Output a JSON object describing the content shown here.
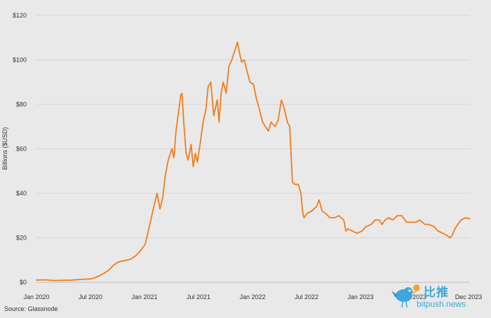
{
  "chart_data": {
    "type": "line",
    "title": "",
    "xlabel": "",
    "ylabel": "Billions ($USD)",
    "x_ticks": [
      "Jan 2020",
      "Jul 2020",
      "Jan 2021",
      "Jul 2021",
      "Jan 2022",
      "Jul 2022",
      "Jan 2023",
      "Jul 2023",
      "Dec 2023"
    ],
    "y_ticks": [
      "$0",
      "$20",
      "$40",
      "$60",
      "$80",
      "$100",
      "$120"
    ],
    "ylim": [
      0,
      120
    ],
    "xlim": [
      "2020-01-01",
      "2023-12-31"
    ],
    "grid": "horizontal",
    "color": "#f07d1b",
    "series": [
      {
        "x": [
          "2020-01-01",
          "2020-02-01",
          "2020-03-01",
          "2020-04-01",
          "2020-05-01",
          "2020-06-01",
          "2020-07-01",
          "2020-07-15",
          "2020-08-01",
          "2020-08-15",
          "2020-09-01",
          "2020-09-15",
          "2020-10-01",
          "2020-10-15",
          "2020-11-01",
          "2020-11-15",
          "2020-12-01",
          "2020-12-15",
          "2021-01-01",
          "2021-01-10",
          "2021-01-20",
          "2021-02-01",
          "2021-02-10",
          "2021-02-20",
          "2021-03-01",
          "2021-03-10",
          "2021-03-20",
          "2021-04-01",
          "2021-04-08",
          "2021-04-15",
          "2021-04-22",
          "2021-05-01",
          "2021-05-05",
          "2021-05-12",
          "2021-05-19",
          "2021-05-26",
          "2021-06-05",
          "2021-06-12",
          "2021-06-19",
          "2021-06-26",
          "2021-07-05",
          "2021-07-15",
          "2021-07-25",
          "2021-08-01",
          "2021-08-10",
          "2021-08-20",
          "2021-09-01",
          "2021-09-07",
          "2021-09-14",
          "2021-09-21",
          "2021-10-01",
          "2021-10-10",
          "2021-10-20",
          "2021-11-01",
          "2021-11-08",
          "2021-11-15",
          "2021-11-22",
          "2021-12-01",
          "2021-12-10",
          "2021-12-20",
          "2022-01-01",
          "2022-01-10",
          "2022-01-20",
          "2022-02-01",
          "2022-02-10",
          "2022-02-20",
          "2022-03-01",
          "2022-03-15",
          "2022-03-25",
          "2022-04-05",
          "2022-04-15",
          "2022-04-25",
          "2022-05-03",
          "2022-05-08",
          "2022-05-12",
          "2022-05-20",
          "2022-06-01",
          "2022-06-10",
          "2022-06-15",
          "2022-06-20",
          "2022-07-01",
          "2022-07-15",
          "2022-08-01",
          "2022-08-10",
          "2022-08-20",
          "2022-09-01",
          "2022-09-15",
          "2022-10-01",
          "2022-10-15",
          "2022-11-01",
          "2022-11-08",
          "2022-11-15",
          "2022-12-01",
          "2022-12-15",
          "2023-01-01",
          "2023-01-15",
          "2023-02-01",
          "2023-02-15",
          "2023-03-01",
          "2023-03-10",
          "2023-03-20",
          "2023-04-01",
          "2023-04-15",
          "2023-05-01",
          "2023-05-15",
          "2023-06-01",
          "2023-06-15",
          "2023-07-01",
          "2023-07-15",
          "2023-08-01",
          "2023-08-15",
          "2023-09-01",
          "2023-09-15",
          "2023-10-01",
          "2023-10-15",
          "2023-10-25",
          "2023-11-01",
          "2023-11-10",
          "2023-11-20",
          "2023-12-01",
          "2023-12-15",
          "2023-12-31"
        ],
        "y": [
          1.0,
          1.1,
          0.8,
          0.9,
          1.0,
          1.3,
          1.5,
          2.0,
          3.0,
          4.0,
          5.5,
          7.5,
          9.0,
          9.5,
          10.0,
          10.5,
          12.0,
          14.0,
          17.0,
          22.0,
          28.0,
          35.0,
          40.0,
          33.0,
          38.0,
          48.0,
          55.0,
          60.0,
          56.0,
          68.0,
          75.0,
          84.0,
          85.0,
          70.0,
          58.0,
          55.0,
          62.0,
          52.0,
          58.0,
          54.0,
          62.0,
          72.0,
          78.0,
          88.0,
          90.0,
          75.0,
          82.0,
          72.0,
          85.0,
          90.0,
          85.0,
          97.0,
          100.0,
          105.0,
          108.0,
          103.0,
          99.0,
          100.0,
          95.0,
          90.0,
          89.0,
          83.0,
          78.0,
          72.0,
          70.0,
          68.0,
          72.0,
          70.0,
          73.0,
          82.0,
          78.0,
          72.0,
          70.0,
          56.0,
          45.0,
          44.0,
          44.0,
          40.0,
          32.0,
          29.0,
          31.0,
          32.0,
          34.0,
          37.0,
          32.0,
          31.0,
          29.0,
          29.0,
          30.0,
          28.0,
          23.0,
          24.0,
          23.0,
          22.0,
          23.0,
          25.0,
          26.0,
          28.0,
          28.0,
          26.0,
          28.0,
          29.0,
          28.0,
          30.0,
          30.0,
          27.0,
          27.0,
          27.0,
          28.0,
          26.0,
          26.0,
          25.0,
          23.0,
          22.0,
          21.0,
          20.0,
          21.0,
          24.0,
          26.0,
          28.0,
          29.0,
          28.5
        ]
      }
    ]
  },
  "source": "Source: Glassnode",
  "watermark": {
    "cn": "比推",
    "en": "bitpush.news"
  }
}
